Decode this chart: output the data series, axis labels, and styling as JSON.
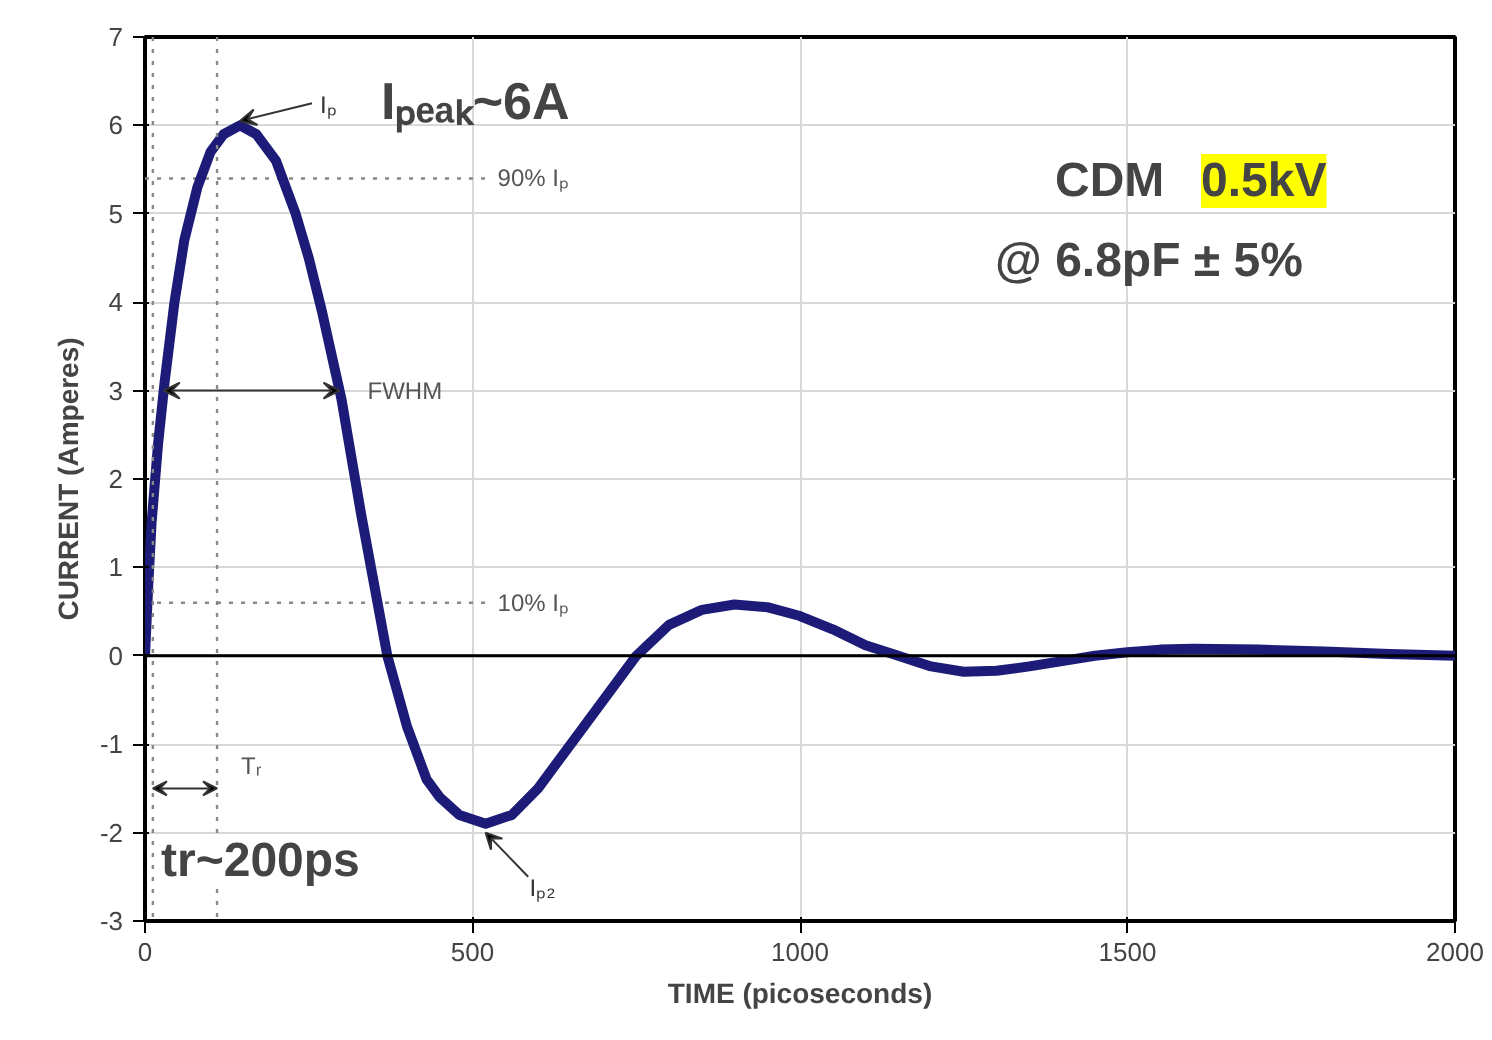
{
  "chart_data": {
    "type": "line",
    "xlabel": "TIME (picoseconds)",
    "ylabel": "CURRENT (Amperes)",
    "x": [
      0,
      5,
      10,
      20,
      30,
      45,
      60,
      80,
      100,
      120,
      145,
      170,
      200,
      230,
      250,
      270,
      300,
      330,
      350,
      370,
      400,
      430,
      450,
      480,
      520,
      560,
      600,
      650,
      700,
      750,
      800,
      850,
      900,
      950,
      1000,
      1050,
      1100,
      1150,
      1200,
      1250,
      1300,
      1350,
      1400,
      1450,
      1500,
      1550,
      1600,
      1700,
      1800,
      1900,
      2000
    ],
    "series": [
      {
        "color": "#1c1c78",
        "values": [
          0,
          0.8,
          1.5,
          2.4,
          3.1,
          4.0,
          4.7,
          5.3,
          5.7,
          5.9,
          6.0,
          5.9,
          5.6,
          5.0,
          4.5,
          3.9,
          2.9,
          1.6,
          0.8,
          0.0,
          -0.8,
          -1.4,
          -1.6,
          -1.8,
          -1.9,
          -1.8,
          -1.5,
          -1.0,
          -0.5,
          0.0,
          0.35,
          0.52,
          0.58,
          0.55,
          0.45,
          0.3,
          0.12,
          0.0,
          -0.12,
          -0.18,
          -0.17,
          -0.12,
          -0.06,
          0.0,
          0.04,
          0.07,
          0.08,
          0.07,
          0.05,
          0.02,
          0.0
        ]
      }
    ],
    "xlim": [
      0,
      2000
    ],
    "ylim": [
      -3,
      7
    ],
    "xticks": [
      0,
      500,
      1000,
      1500,
      2000
    ],
    "yticks": [
      -3,
      -2,
      -1,
      0,
      1,
      2,
      3,
      4,
      5,
      6,
      7
    ],
    "grid": true,
    "line_style": "solid",
    "marker": "none",
    "ref_lines": [
      {
        "axis": "y",
        "value": 0,
        "color": "#000000",
        "line_style": "solid"
      },
      {
        "axis": "y",
        "value": 5.4,
        "label": "90% Iₚ",
        "color": "#888888",
        "line_style": "dotted"
      },
      {
        "axis": "y",
        "value": 0.6,
        "label": "10% Iₚ",
        "color": "#888888",
        "line_style": "dotted"
      },
      {
        "axis": "x",
        "value": 12,
        "color": "#888888",
        "line_style": "dotted"
      },
      {
        "axis": "x",
        "value": 110,
        "color": "#888888",
        "line_style": "dotted"
      }
    ],
    "annotations": [
      {
        "text": "Iₚ",
        "x": 145,
        "y": 6
      },
      "Iₚₑₐₖ~6A",
      "FWHM",
      {
        "text": "Tᵣ",
        "x": 110,
        "y": -1.5
      },
      "tr~200ps",
      {
        "text": "Iₚ₂",
        "x": 520,
        "y": -1.9
      },
      "CDM",
      "0.5kV",
      "@ 6.8pF ± 5%"
    ]
  }
}
